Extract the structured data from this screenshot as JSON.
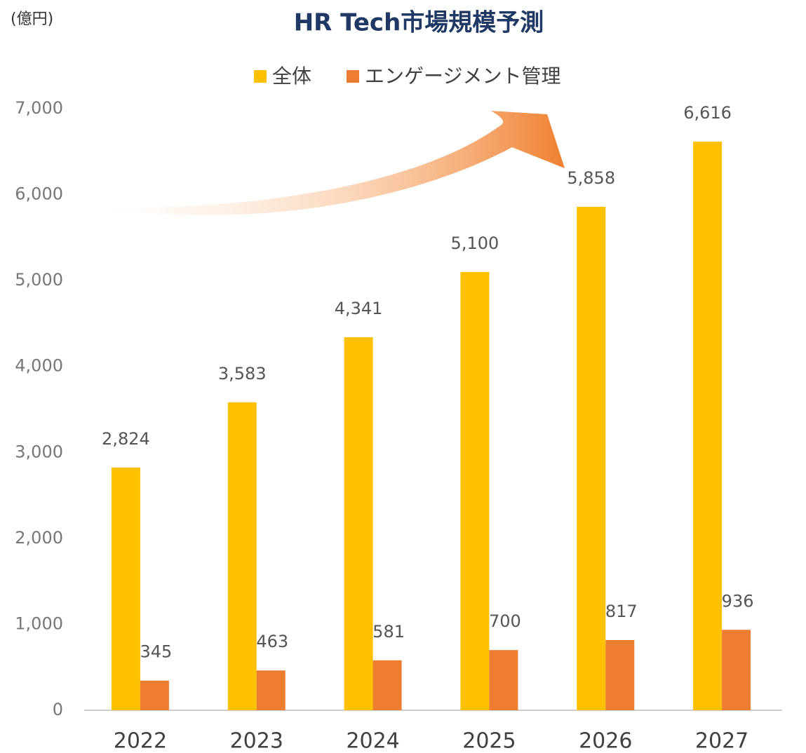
{
  "chart_data": {
    "type": "bar",
    "title": "HR Tech市場規模予測",
    "y_label": "(億円)",
    "categories": [
      "2022",
      "2023",
      "2024",
      "2025",
      "2026",
      "2027"
    ],
    "series": [
      {
        "name": "全体",
        "color": "#FFC000",
        "values": [
          2824,
          3583,
          4341,
          5100,
          5858,
          6616
        ],
        "value_labels": [
          "2,824",
          "3,583",
          "4,341",
          "5,100",
          "5,858",
          "6,616"
        ]
      },
      {
        "name": "エンゲージメント管理",
        "color": "#ED7D31",
        "values": [
          345,
          463,
          581,
          700,
          817,
          936
        ]
      }
    ],
    "ylim": [
      0,
      7000
    ],
    "yticks": [
      0,
      {
        "value": 1000,
        "label": "1,000"
      },
      {
        "value": 2000,
        "label": "2,000"
      },
      {
        "value": 3000,
        "label": "3,000"
      },
      {
        "value": 4000,
        "label": "4,000"
      },
      {
        "value": 5000,
        "label": "5,000"
      },
      {
        "value": 6000,
        "label": "6,000"
      },
      {
        "value": 7000,
        "label": "7,000"
      }
    ],
    "grid": false,
    "legend": "top"
  }
}
